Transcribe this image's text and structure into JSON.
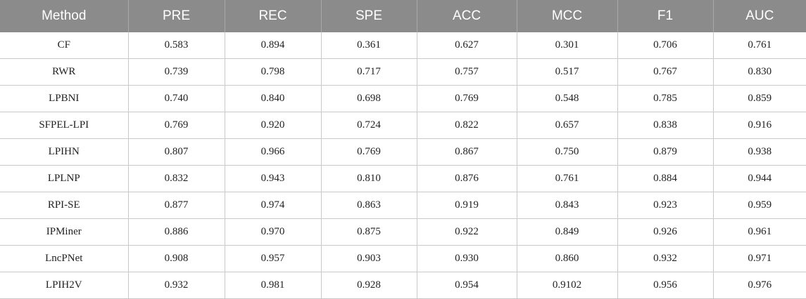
{
  "table": {
    "headers": [
      "Method",
      "PRE",
      "REC",
      "SPE",
      "ACC",
      "MCC",
      "F1",
      "AUC"
    ],
    "rows": [
      [
        "CF",
        "0.583",
        "0.894",
        "0.361",
        "0.627",
        "0.301",
        "0.706",
        "0.761"
      ],
      [
        "RWR",
        "0.739",
        "0.798",
        "0.717",
        "0.757",
        "0.517",
        "0.767",
        "0.830"
      ],
      [
        "LPBNI",
        "0.740",
        "0.840",
        "0.698",
        "0.769",
        "0.548",
        "0.785",
        "0.859"
      ],
      [
        "SFPEL-LPI",
        "0.769",
        "0.920",
        "0.724",
        "0.822",
        "0.657",
        "0.838",
        "0.916"
      ],
      [
        "LPIHN",
        "0.807",
        "0.966",
        "0.769",
        "0.867",
        "0.750",
        "0.879",
        "0.938"
      ],
      [
        "LPLNP",
        "0.832",
        "0.943",
        "0.810",
        "0.876",
        "0.761",
        "0.884",
        "0.944"
      ],
      [
        "RPI-SE",
        "0.877",
        "0.974",
        "0.863",
        "0.919",
        "0.843",
        "0.923",
        "0.959"
      ],
      [
        "IPMiner",
        "0.886",
        "0.970",
        "0.875",
        "0.922",
        "0.849",
        "0.926",
        "0.961"
      ],
      [
        "LncPNet",
        "0.908",
        "0.957",
        "0.903",
        "0.930",
        "0.860",
        "0.932",
        "0.971"
      ],
      [
        "LPIH2V",
        "0.932",
        "0.981",
        "0.928",
        "0.954",
        "0.9102",
        "0.956",
        "0.976"
      ]
    ]
  }
}
